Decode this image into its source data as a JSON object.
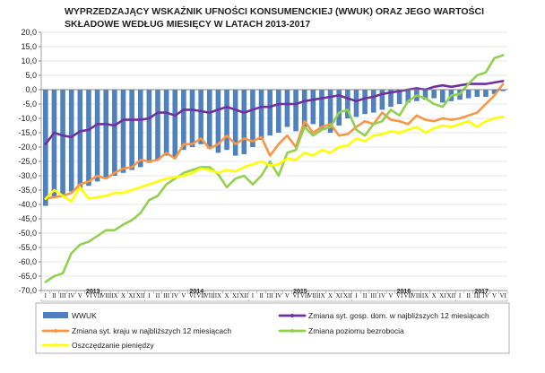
{
  "chart_data": {
    "type": "bar",
    "title_lines": [
      "WYPRZEDZAJĄCY WSKAŹNIK UFNOŚCI KONSUMENCKIEJ (WWUK) ORAZ JEGO WARTOŚCI",
      "SKŁADOWE WEDŁUG MIESIĘCY W LATACH 2013-2017"
    ],
    "xlabel": "",
    "ylabel": "",
    "ylim": [
      -70,
      20
    ],
    "yticks": [
      "20,0",
      "15,0",
      "10,0",
      "5,0",
      "0,0",
      "-5,0",
      "-10,0",
      "-15,0",
      "-20,0",
      "-25,0",
      "-30,0",
      "-35,0",
      "-40,0",
      "-45,0",
      "-50,0",
      "-55,0",
      "-60,0",
      "-65,0",
      "-70,0"
    ],
    "ytick_values": [
      20,
      15,
      10,
      5,
      0,
      -5,
      -10,
      -15,
      -20,
      -25,
      -30,
      -35,
      -40,
      -45,
      -50,
      -55,
      -60,
      -65,
      -70
    ],
    "grid": true,
    "legend_position": "bottom",
    "categories": [
      "I",
      "II",
      "III",
      "IV",
      "V",
      "VI",
      "VII",
      "VIII",
      "IX",
      "X",
      "XI",
      "XII",
      "I",
      "II",
      "III",
      "IV",
      "V",
      "VI",
      "VII",
      "VIII",
      "IX",
      "X",
      "XI",
      "XII",
      "I",
      "II",
      "III",
      "IV",
      "V",
      "VI",
      "VII",
      "VIII",
      "IX",
      "X",
      "XI",
      "XII",
      "I",
      "II",
      "III",
      "IV",
      "V",
      "VI",
      "VII",
      "VIII",
      "IX",
      "X",
      "XI",
      "XII",
      "I",
      "II",
      "III",
      "IV",
      "V",
      "VI"
    ],
    "years": [
      {
        "label": "2013",
        "start": 0,
        "count": 12
      },
      {
        "label": "2014",
        "start": 12,
        "count": 12
      },
      {
        "label": "2015",
        "start": 24,
        "count": 12
      },
      {
        "label": "2016",
        "start": 36,
        "count": 12
      },
      {
        "label": "2017",
        "start": 48,
        "count": 6
      }
    ],
    "series": [
      {
        "name": "WWUK",
        "kind": "bar",
        "color": "#4f81bd",
        "values": [
          -40.5,
          -37.5,
          -36.5,
          -35.5,
          -34.5,
          -33.5,
          -32,
          -31,
          -30,
          -29,
          -28,
          -27,
          -25.5,
          -24.5,
          -23,
          -23.5,
          -21,
          -20,
          -19,
          -20.5,
          -22,
          -21,
          -23,
          -22.5,
          -20,
          -17.5,
          -16,
          -15,
          -13,
          -14.5,
          -13,
          -12,
          -14,
          -15,
          -12.5,
          -10,
          -9.5,
          -8.5,
          -8,
          -7,
          -6,
          -5,
          -4.5,
          -4,
          -3.5,
          -3,
          -4.5,
          -4,
          -3.5,
          -3,
          -2.5,
          -2.5,
          -1.5,
          -0.5
        ]
      },
      {
        "name": "Zmiana syt. gosp. dom. w najbliższych 12 miesiącach",
        "kind": "line",
        "color": "#7030a0",
        "values": [
          -19,
          -15,
          -16,
          -16.5,
          -14.5,
          -14,
          -12,
          -12,
          -12.5,
          -10.5,
          -10.5,
          -10.5,
          -10,
          -8,
          -8,
          -9,
          -7,
          -7,
          -7.5,
          -8,
          -7,
          -6,
          -7,
          -8,
          -7,
          -6,
          -6,
          -5,
          -5,
          -5,
          -4,
          -3.5,
          -3,
          -2.5,
          -2,
          -3,
          -4,
          -3,
          -2.5,
          -1.5,
          -1,
          -0.5,
          0,
          0.5,
          0,
          1,
          1.5,
          1,
          1.5,
          2,
          2,
          2,
          2.5,
          3
        ]
      },
      {
        "name": "Zmiana syt. kraju w najbliższych 12 miesiącach",
        "kind": "line",
        "color": "#f79646",
        "values": [
          -38,
          -37.5,
          -37,
          -36,
          -33,
          -32,
          -30,
          -31,
          -29,
          -27.5,
          -27,
          -24.5,
          -25,
          -24.5,
          -22,
          -24,
          -19,
          -19,
          -17,
          -20.5,
          -19,
          -16,
          -19,
          -17,
          -18,
          -16.5,
          -23,
          -19,
          -16,
          -20,
          -11,
          -15,
          -13,
          -12,
          -16,
          -15.5,
          -13,
          -11,
          -12,
          -8,
          -10.5,
          -11,
          -12,
          -9,
          -10.5,
          -11,
          -10,
          -10.5,
          -10,
          -9,
          -8,
          -5,
          -2,
          2
        ]
      },
      {
        "name": "Zmiana poziomu bezrobocia",
        "kind": "line",
        "color": "#92d050",
        "values": [
          -67,
          -65,
          -64,
          -57,
          -54,
          -53,
          -51,
          -49,
          -49,
          -47,
          -45.5,
          -43,
          -38.5,
          -37,
          -33,
          -31,
          -29,
          -28,
          -27,
          -27,
          -29.5,
          -34,
          -31,
          -30,
          -33,
          -30,
          -25,
          -30,
          -22,
          -21,
          -13,
          -16,
          -14,
          -13,
          -8,
          -7,
          -14,
          -16,
          -12,
          -11,
          -7,
          -9,
          -4,
          -2,
          -3,
          -5,
          -6,
          -2,
          -1.5,
          2,
          5,
          6,
          11,
          12
        ]
      },
      {
        "name": "Oszczędzanie pieniędzy",
        "kind": "line",
        "color": "#ffff00",
        "values": [
          -38,
          -35,
          -37,
          -39,
          -34,
          -38,
          -37.5,
          -37,
          -36,
          -36,
          -35,
          -34,
          -33,
          -32,
          -31,
          -30.5,
          -30,
          -29,
          -27.5,
          -28,
          -29,
          -28,
          -28.5,
          -27,
          -26,
          -25,
          -26.5,
          -26,
          -24,
          -24.5,
          -22,
          -23,
          -21,
          -22,
          -20,
          -19.5,
          -17,
          -18,
          -16,
          -15.5,
          -14.5,
          -15,
          -14,
          -13,
          -15,
          -13.5,
          -12.5,
          -13,
          -12,
          -11,
          -13,
          -11,
          -10,
          -9.5
        ]
      }
    ],
    "legend_order": [
      0,
      1,
      2,
      3,
      4
    ]
  }
}
